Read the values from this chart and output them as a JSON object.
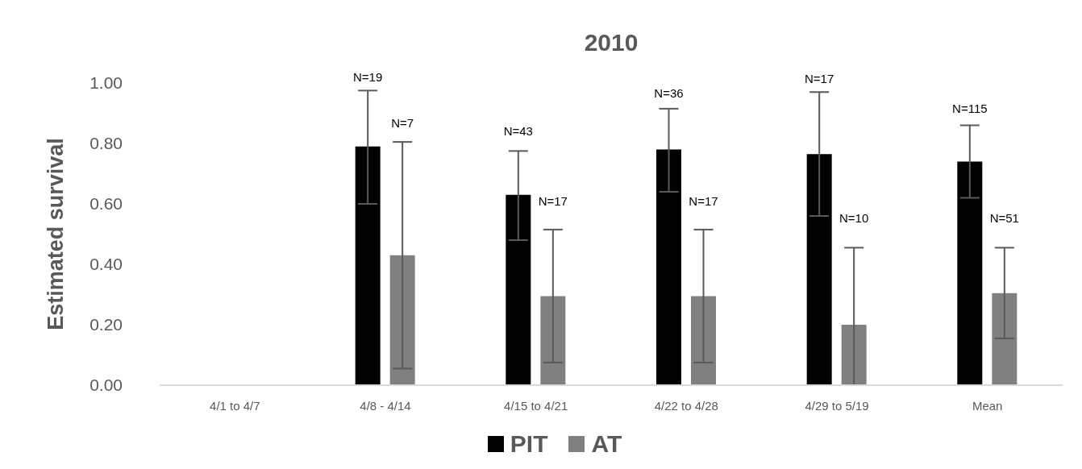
{
  "chart_data": {
    "type": "bar",
    "title": "2010",
    "ylabel": "Estimated survival",
    "categories": [
      "4/1 to 4/7",
      "4/8 - 4/14",
      "4/15 to 4/21",
      "4/22 to 4/28",
      "4/29 to 5/19",
      "Mean"
    ],
    "series": [
      {
        "name": "PIT",
        "color": "#000000",
        "values": [
          null,
          0.79,
          0.63,
          0.78,
          0.765,
          0.74
        ],
        "errors": [
          null,
          [
            0.6,
            0.975
          ],
          [
            0.48,
            0.775
          ],
          [
            0.64,
            0.915
          ],
          [
            0.56,
            0.97
          ],
          [
            0.62,
            0.86
          ]
        ]
      },
      {
        "name": "AT",
        "color": "#808080",
        "values": [
          null,
          0.43,
          0.295,
          0.295,
          0.2,
          0.305
        ],
        "errors": [
          null,
          [
            0.055,
            0.805
          ],
          [
            0.075,
            0.515
          ],
          [
            0.075,
            0.515
          ],
          [
            0,
            0.455
          ],
          [
            0.155,
            0.455
          ]
        ]
      }
    ],
    "annotations": [
      "N=19",
      "N=7",
      "N=43",
      "N=17",
      "N=36",
      "N=17",
      "N=17",
      "N=10",
      "N=115",
      "N=51"
    ],
    "ylim": [
      0,
      1
    ],
    "yticks": [
      {
        "value": 0,
        "label": "0.00"
      },
      {
        "value": 0.2,
        "label": "0.20"
      },
      {
        "value": 0.4,
        "label": "0.40"
      },
      {
        "value": 0.6,
        "label": "0.60"
      },
      {
        "value": 0.8,
        "label": "0.80"
      },
      {
        "value": 1,
        "label": "1.00"
      }
    ],
    "grid": false,
    "legend": "bottom"
  }
}
